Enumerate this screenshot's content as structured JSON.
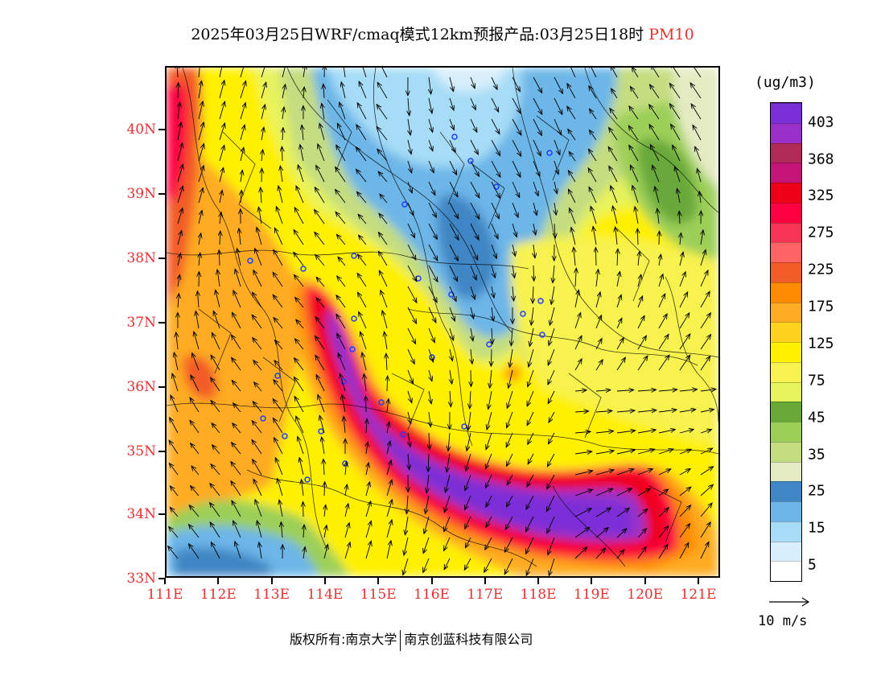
{
  "title": {
    "text": "2025年03月25日WRF/cmaq模式12km预报产品:03月25日18时",
    "pollutant": "PM10"
  },
  "axes": {
    "lat_labels": [
      "40N",
      "39N",
      "38N",
      "37N",
      "36N",
      "35N",
      "34N",
      "33N"
    ],
    "lon_labels": [
      "111E",
      "112E",
      "113E",
      "114E",
      "115E",
      "116E",
      "117E",
      "118E",
      "119E",
      "120E",
      "121E"
    ]
  },
  "legend": {
    "unit": "(ug/m3)",
    "labels": [
      "403",
      "368",
      "325",
      "275",
      "225",
      "175",
      "125",
      "75",
      "45",
      "35",
      "25",
      "15",
      "5"
    ],
    "colors": [
      "#ffffff",
      "#d8eefb",
      "#a6dcf6",
      "#6cb6e8",
      "#3f86c4",
      "#e4ebc2",
      "#c4dd80",
      "#9ccf58",
      "#69a93a",
      "#e7f35c",
      "#f7f24e",
      "#fff000",
      "#ffd21e",
      "#ffac24",
      "#ff8c00",
      "#f25c28",
      "#ff6464",
      "#f83454",
      "#ff0040",
      "#ef0019",
      "#c41478",
      "#b02a58",
      "#9930c8",
      "#7b2fd8"
    ]
  },
  "wind_reference": {
    "label": "10 m/s"
  },
  "copyright": {
    "left": "版权所有:南京大学",
    "right": "南京创蓝科技有限公司"
  }
}
